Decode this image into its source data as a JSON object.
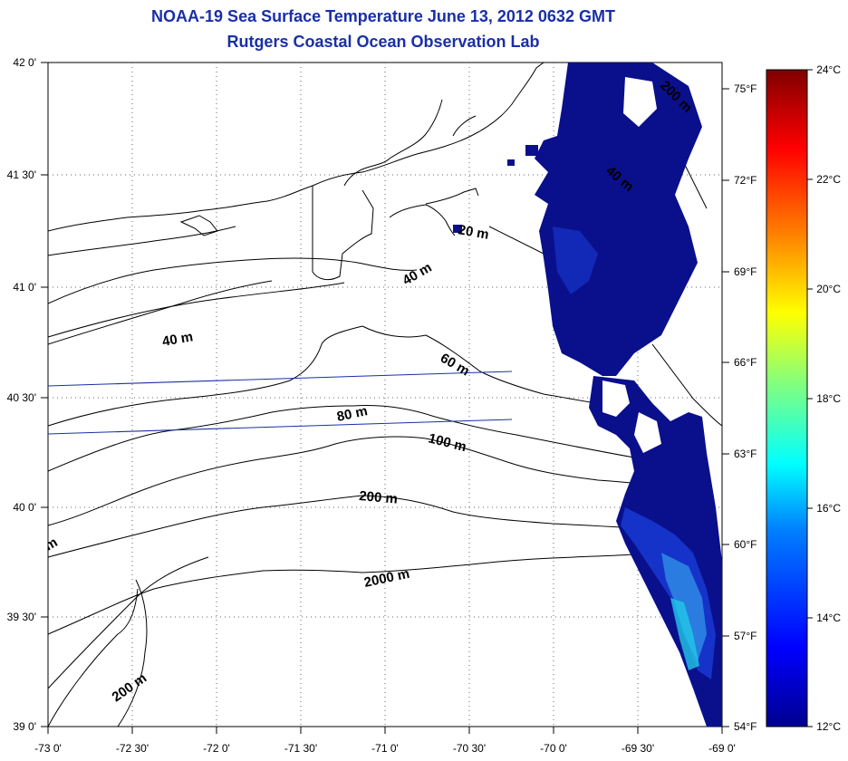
{
  "title": "NOAA-19 Sea Surface Temperature June 13, 2012 0632 GMT",
  "subtitle": "Rutgers Coastal Ocean Observation Lab",
  "axes": {
    "lat_ticks": [
      "42 0'",
      "41 30'",
      "41 0'",
      "40 30'",
      "40 0'",
      "39 30'",
      "39 0'"
    ],
    "lon_ticks": [
      "-73 0'",
      "-72 30'",
      "-72 0'",
      "-71 30'",
      "-71 0'",
      "-70 30'",
      "-70 0'",
      "-69 30'",
      "-69 0'"
    ]
  },
  "colorbar": {
    "celsius_labels": [
      "24°C",
      "22°C",
      "20°C",
      "18°C",
      "16°C",
      "14°C",
      "12°C"
    ],
    "fahrenheit_labels": [
      "75°F",
      "72°F",
      "69°F",
      "66°F",
      "63°F",
      "60°F",
      "57°F",
      "54°F"
    ],
    "colors": [
      "#00008f",
      "#0000ff",
      "#0080ff",
      "#00ffff",
      "#80ff80",
      "#ffff00",
      "#ff8000",
      "#ff0000",
      "#800000"
    ]
  },
  "isobaths": {
    "m20": "20 m",
    "m40a": "40 m",
    "m40b": "40 m",
    "m40c": "40 m",
    "m60": "60 m",
    "m80": "80 m",
    "m100": "100 m",
    "m200a": "200 m",
    "m200b": "200 m",
    "m200c": "200 m",
    "m2000": "2000 m",
    "m_edge": "m"
  },
  "colors": {
    "title": "#1a2fa8",
    "sst_dark": "#0a0f8c",
    "sst_mid": "#1533c8",
    "sst_light": "#2a7ce0",
    "sst_cyan": "#22c8e8"
  }
}
